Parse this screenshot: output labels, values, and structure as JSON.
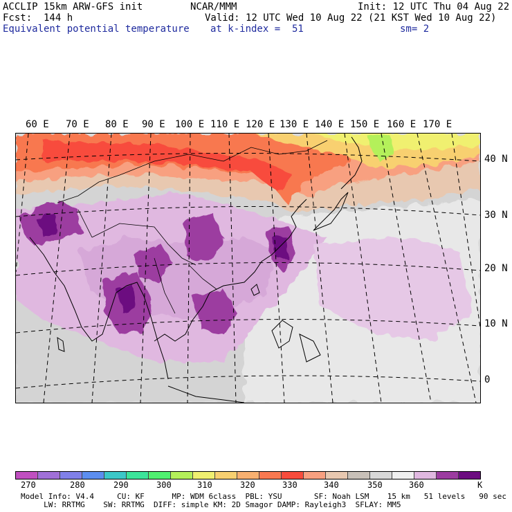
{
  "header": {
    "line1_left": "ACCLIP 15km ARW-GFS init",
    "line1_mid": "NCAR/MMM",
    "line1_right": "Init: 12 UTC Thu 04 Aug 22",
    "line2_left": "Fcst:  144 h",
    "line2_right": "Valid: 12 UTC Wed 10 Aug 22 (21 KST Wed 10 Aug 22)",
    "line3_left": "Equivalent potential temperature",
    "line3_mid": "at k-index =  51",
    "line3_right": "sm= 2"
  },
  "map": {
    "lon_labels": [
      "60 E",
      "70 E",
      "80 E",
      "90 E",
      "100 E",
      "110 E",
      "120 E",
      "130 E",
      "140 E",
      "150 E",
      "160 E",
      "170 E"
    ],
    "lat_labels": [
      "40 N",
      "30 N",
      "20 N",
      "10 N",
      "0"
    ]
  },
  "colorbar": {
    "colors": [
      "#c04fc0",
      "#a070d8",
      "#8080e8",
      "#5c8ef0",
      "#3cc8c8",
      "#3ce49a",
      "#50f070",
      "#b4f05a",
      "#f0f070",
      "#f8d070",
      "#f8b070",
      "#f87850",
      "#f84c3c",
      "#f8a080",
      "#e8c8b0",
      "#c8c0b8",
      "#d8d8d8",
      "#f0f0f0",
      "#e0b8e0",
      "#9c3ca0",
      "#6c0c80"
    ],
    "labels": [
      "270",
      "280",
      "290",
      "300",
      "310",
      "320",
      "330",
      "340",
      "350",
      "360",
      "K"
    ]
  },
  "footer": {
    "line1": "Model Info: V4.4     CU: KF      MP: WDM 6class  PBL: YSU       SF: Noah LSM    15 km   51 levels   90 sec",
    "line2": "     LW: RRTMG    SW: RRTMG  DIFF: simple KM: 2D Smagor DAMP: Rayleigh3  SFLAY: MM5"
  }
}
